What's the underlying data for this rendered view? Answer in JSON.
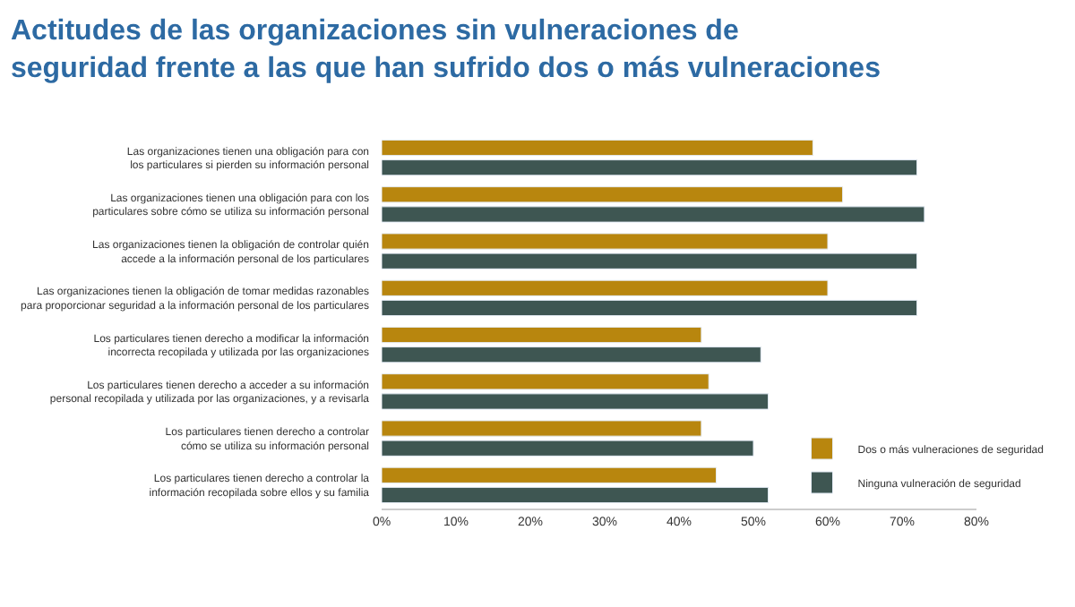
{
  "chart_data": {
    "type": "bar",
    "orientation": "horizontal",
    "title": "Actitudes de las organizaciones sin vulneraciones de\nseguridad frente a las que han sufrido dos o más vulneraciones",
    "categories": [
      "Las organizaciones tienen una obligación para con\nlos particulares si pierden su información personal",
      "Las organizaciones tienen una obligación para con los\nparticulares sobre cómo se utiliza su información personal",
      "Las organizaciones tienen la obligación de controlar quién\naccede a la información personal de los particulares",
      "Las organizaciones tienen la obligación de tomar medidas razonables\npara proporcionar seguridad a la información personal de los particulares",
      "Los particulares tienen derecho a modificar la información\nincorrecta recopilada y utilizada por las organizaciones",
      "Los particulares tienen derecho a acceder a su información\npersonal recopilada y utilizada por las organizaciones, y a revisarla",
      "Los particulares tienen derecho a controlar\ncómo se utiliza su información personal",
      "Los particulares tienen derecho a controlar la\ninformación recopilada sobre ellos y su familia"
    ],
    "series": [
      {
        "name": "Dos o más vulneraciones de seguridad",
        "color": "#b8860e",
        "values": [
          58,
          62,
          60,
          60,
          43,
          44,
          43,
          45
        ]
      },
      {
        "name": "Ninguna vulneración de seguridad",
        "color": "#3e5652",
        "values": [
          72,
          73,
          72,
          72,
          51,
          52,
          50,
          52
        ]
      }
    ],
    "xlim": [
      0,
      80
    ],
    "xticks": [
      {
        "value": 0,
        "label": "0%"
      },
      {
        "value": 10,
        "label": "10%"
      },
      {
        "value": 20,
        "label": "20%"
      },
      {
        "value": 30,
        "label": "30%"
      },
      {
        "value": 40,
        "label": "40%"
      },
      {
        "value": 50,
        "label": "50%"
      },
      {
        "value": 60,
        "label": "60%"
      },
      {
        "value": 70,
        "label": "70%"
      },
      {
        "value": 80,
        "label": "80%"
      }
    ],
    "legend": "bottom right"
  }
}
